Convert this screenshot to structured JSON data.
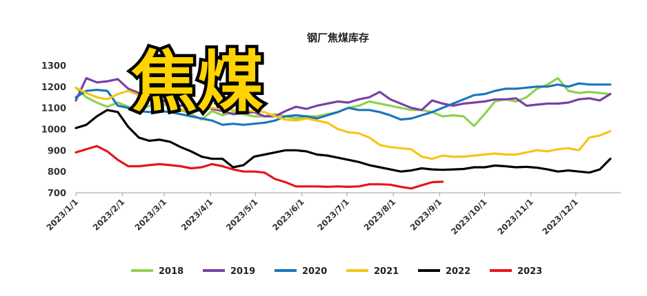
{
  "overlay_text": "焦煤",
  "chart_data": {
    "type": "line",
    "title": "钢厂焦煤库存",
    "xlabel": "",
    "ylabel": "",
    "ylim": [
      700,
      1300
    ],
    "yticks": [
      700,
      800,
      900,
      1000,
      1100,
      1200,
      1300
    ],
    "xlim": [
      0,
      52
    ],
    "xticks": [
      {
        "label": "2023/1/1",
        "x": 0
      },
      {
        "label": "2023/2/1",
        "x": 4.43
      },
      {
        "label": "2023/3/1",
        "x": 8.43
      },
      {
        "label": "2023/4/1",
        "x": 12.86
      },
      {
        "label": "2023/5/1",
        "x": 17.14
      },
      {
        "label": "2023/6/1",
        "x": 21.57
      },
      {
        "label": "2023/7/1",
        "x": 25.86
      },
      {
        "label": "2023/8/1",
        "x": 30.29
      },
      {
        "label": "2023/9/1",
        "x": 34.71
      },
      {
        "label": "2023/10/1",
        "x": 39.0
      },
      {
        "label": "2023/11/1",
        "x": 43.43
      },
      {
        "label": "2023/12/1",
        "x": 47.71
      }
    ],
    "grid": false,
    "legend_position": "bottom",
    "series": [
      {
        "name": "2018",
        "color": "#8fd14f",
        "points": [
          [
            0,
            1195
          ],
          [
            1,
            1150
          ],
          [
            2,
            1125
          ],
          [
            3,
            1105
          ],
          [
            4,
            1125
          ],
          [
            5,
            1105
          ],
          [
            6,
            1085
          ],
          [
            7,
            1110
          ],
          [
            8,
            1115
          ],
          [
            9,
            1115
          ],
          [
            10,
            1090
          ],
          [
            11,
            1070
          ],
          [
            12,
            1045
          ],
          [
            13,
            1085
          ],
          [
            14,
            1065
          ],
          [
            15,
            1080
          ],
          [
            16,
            1070
          ],
          [
            17,
            1060
          ],
          [
            18,
            1060
          ],
          [
            19,
            1070
          ],
          [
            20,
            1060
          ],
          [
            21,
            1050
          ],
          [
            22,
            1060
          ],
          [
            23,
            1060
          ],
          [
            24,
            1070
          ],
          [
            25,
            1080
          ],
          [
            26,
            1100
          ],
          [
            27,
            1110
          ],
          [
            28,
            1130
          ],
          [
            29,
            1120
          ],
          [
            30,
            1110
          ],
          [
            31,
            1100
          ],
          [
            32,
            1090
          ],
          [
            33,
            1090
          ],
          [
            34,
            1080
          ],
          [
            35,
            1060
          ],
          [
            36,
            1065
          ],
          [
            37,
            1060
          ],
          [
            38,
            1015
          ],
          [
            39,
            1070
          ],
          [
            40,
            1130
          ],
          [
            41,
            1140
          ],
          [
            42,
            1130
          ],
          [
            43,
            1150
          ],
          [
            44,
            1190
          ],
          [
            45,
            1210
          ],
          [
            46,
            1240
          ],
          [
            47,
            1180
          ],
          [
            48,
            1170
          ],
          [
            49,
            1175
          ],
          [
            50,
            1170
          ],
          [
            51,
            1165
          ]
        ]
      },
      {
        "name": "2019",
        "color": "#7b3fa6",
        "points": [
          [
            0,
            1135
          ],
          [
            1,
            1240
          ],
          [
            2,
            1220
          ],
          [
            3,
            1225
          ],
          [
            4,
            1235
          ],
          [
            5,
            1190
          ],
          [
            6,
            1170
          ],
          [
            7,
            1160
          ],
          [
            8,
            1140
          ],
          [
            9,
            1120
          ],
          [
            10,
            1110
          ],
          [
            11,
            1115
          ],
          [
            12,
            1105
          ],
          [
            13,
            1095
          ],
          [
            14,
            1085
          ],
          [
            15,
            1070
          ],
          [
            16,
            1075
          ],
          [
            17,
            1080
          ],
          [
            18,
            1060
          ],
          [
            19,
            1060
          ],
          [
            20,
            1085
          ],
          [
            21,
            1105
          ],
          [
            22,
            1095
          ],
          [
            23,
            1110
          ],
          [
            24,
            1120
          ],
          [
            25,
            1130
          ],
          [
            26,
            1125
          ],
          [
            27,
            1140
          ],
          [
            28,
            1150
          ],
          [
            29,
            1175
          ],
          [
            30,
            1140
          ],
          [
            31,
            1120
          ],
          [
            32,
            1100
          ],
          [
            33,
            1090
          ],
          [
            34,
            1135
          ],
          [
            35,
            1120
          ],
          [
            36,
            1110
          ],
          [
            37,
            1120
          ],
          [
            38,
            1125
          ],
          [
            39,
            1130
          ],
          [
            40,
            1140
          ],
          [
            41,
            1140
          ],
          [
            42,
            1145
          ],
          [
            43,
            1110
          ],
          [
            44,
            1115
          ],
          [
            45,
            1120
          ],
          [
            46,
            1120
          ],
          [
            47,
            1125
          ],
          [
            48,
            1140
          ],
          [
            49,
            1145
          ],
          [
            50,
            1135
          ],
          [
            51,
            1165
          ]
        ]
      },
      {
        "name": "2020",
        "color": "#1a75bc",
        "points": [
          [
            0,
            1150
          ],
          [
            1,
            1180
          ],
          [
            2,
            1185
          ],
          [
            3,
            1180
          ],
          [
            4,
            1110
          ],
          [
            5,
            1100
          ],
          [
            6,
            1085
          ],
          [
            7,
            1080
          ],
          [
            8,
            1085
          ],
          [
            9,
            1080
          ],
          [
            10,
            1070
          ],
          [
            11,
            1060
          ],
          [
            12,
            1050
          ],
          [
            13,
            1040
          ],
          [
            14,
            1020
          ],
          [
            15,
            1025
          ],
          [
            16,
            1020
          ],
          [
            17,
            1025
          ],
          [
            18,
            1030
          ],
          [
            19,
            1040
          ],
          [
            20,
            1060
          ],
          [
            21,
            1065
          ],
          [
            22,
            1060
          ],
          [
            23,
            1050
          ],
          [
            24,
            1065
          ],
          [
            25,
            1080
          ],
          [
            26,
            1100
          ],
          [
            27,
            1090
          ],
          [
            28,
            1090
          ],
          [
            29,
            1080
          ],
          [
            30,
            1065
          ],
          [
            31,
            1045
          ],
          [
            32,
            1050
          ],
          [
            33,
            1065
          ],
          [
            34,
            1080
          ],
          [
            35,
            1100
          ],
          [
            36,
            1120
          ],
          [
            37,
            1140
          ],
          [
            38,
            1160
          ],
          [
            39,
            1165
          ],
          [
            40,
            1180
          ],
          [
            41,
            1190
          ],
          [
            42,
            1190
          ],
          [
            43,
            1195
          ],
          [
            44,
            1200
          ],
          [
            45,
            1200
          ],
          [
            46,
            1210
          ],
          [
            47,
            1200
          ],
          [
            48,
            1215
          ],
          [
            49,
            1210
          ],
          [
            50,
            1210
          ],
          [
            51,
            1210
          ]
        ]
      },
      {
        "name": "2021",
        "color": "#f5c518",
        "points": [
          [
            0,
            1195
          ],
          [
            1,
            1170
          ],
          [
            2,
            1150
          ],
          [
            3,
            1140
          ],
          [
            4,
            1165
          ],
          [
            5,
            1180
          ],
          [
            6,
            1160
          ],
          [
            7,
            1150
          ],
          [
            8,
            1130
          ],
          [
            9,
            1110
          ],
          [
            10,
            1095
          ],
          [
            11,
            1085
          ],
          [
            12,
            1090
          ],
          [
            13,
            1100
          ],
          [
            14,
            1095
          ],
          [
            15,
            1090
          ],
          [
            16,
            1090
          ],
          [
            17,
            1085
          ],
          [
            18,
            1080
          ],
          [
            19,
            1060
          ],
          [
            20,
            1045
          ],
          [
            21,
            1040
          ],
          [
            22,
            1050
          ],
          [
            23,
            1040
          ],
          [
            24,
            1030
          ],
          [
            25,
            1000
          ],
          [
            26,
            985
          ],
          [
            27,
            980
          ],
          [
            28,
            960
          ],
          [
            29,
            925
          ],
          [
            30,
            915
          ],
          [
            31,
            910
          ],
          [
            32,
            905
          ],
          [
            33,
            870
          ],
          [
            34,
            860
          ],
          [
            35,
            875
          ],
          [
            36,
            870
          ],
          [
            37,
            870
          ],
          [
            38,
            875
          ],
          [
            39,
            880
          ],
          [
            40,
            885
          ],
          [
            41,
            880
          ],
          [
            42,
            880
          ],
          [
            43,
            890
          ],
          [
            44,
            900
          ],
          [
            45,
            895
          ],
          [
            46,
            905
          ],
          [
            47,
            910
          ],
          [
            48,
            900
          ],
          [
            49,
            960
          ],
          [
            50,
            970
          ],
          [
            51,
            990
          ]
        ]
      },
      {
        "name": "2022",
        "color": "#000000",
        "points": [
          [
            0,
            1005
          ],
          [
            1,
            1020
          ],
          [
            2,
            1060
          ],
          [
            3,
            1090
          ],
          [
            4,
            1080
          ],
          [
            5,
            1010
          ],
          [
            6,
            960
          ],
          [
            7,
            945
          ],
          [
            8,
            950
          ],
          [
            9,
            940
          ],
          [
            10,
            915
          ],
          [
            11,
            895
          ],
          [
            12,
            870
          ],
          [
            13,
            860
          ],
          [
            14,
            860
          ],
          [
            15,
            820
          ],
          [
            16,
            830
          ],
          [
            17,
            870
          ],
          [
            18,
            880
          ],
          [
            19,
            890
          ],
          [
            20,
            900
          ],
          [
            21,
            900
          ],
          [
            22,
            895
          ],
          [
            23,
            880
          ],
          [
            24,
            875
          ],
          [
            25,
            865
          ],
          [
            26,
            855
          ],
          [
            27,
            845
          ],
          [
            28,
            830
          ],
          [
            29,
            820
          ],
          [
            30,
            810
          ],
          [
            31,
            800
          ],
          [
            32,
            805
          ],
          [
            33,
            815
          ],
          [
            34,
            810
          ],
          [
            35,
            808
          ],
          [
            36,
            810
          ],
          [
            37,
            812
          ],
          [
            38,
            820
          ],
          [
            39,
            820
          ],
          [
            40,
            828
          ],
          [
            41,
            825
          ],
          [
            42,
            820
          ],
          [
            43,
            822
          ],
          [
            44,
            818
          ],
          [
            45,
            810
          ],
          [
            46,
            800
          ],
          [
            47,
            805
          ],
          [
            48,
            800
          ],
          [
            49,
            795
          ],
          [
            50,
            810
          ],
          [
            51,
            860
          ]
        ]
      },
      {
        "name": "2023",
        "color": "#e8141b",
        "points": [
          [
            0,
            890
          ],
          [
            1,
            905
          ],
          [
            2,
            920
          ],
          [
            3,
            895
          ],
          [
            4,
            855
          ],
          [
            5,
            825
          ],
          [
            6,
            825
          ],
          [
            7,
            830
          ],
          [
            8,
            835
          ],
          [
            9,
            830
          ],
          [
            10,
            825
          ],
          [
            11,
            815
          ],
          [
            12,
            820
          ],
          [
            13,
            835
          ],
          [
            14,
            825
          ],
          [
            15,
            810
          ],
          [
            16,
            800
          ],
          [
            17,
            800
          ],
          [
            18,
            795
          ],
          [
            19,
            765
          ],
          [
            20,
            750
          ],
          [
            21,
            730
          ],
          [
            22,
            730
          ],
          [
            23,
            730
          ],
          [
            24,
            728
          ],
          [
            25,
            730
          ],
          [
            26,
            728
          ],
          [
            27,
            730
          ],
          [
            28,
            740
          ],
          [
            29,
            740
          ],
          [
            30,
            738
          ],
          [
            31,
            728
          ],
          [
            32,
            720
          ],
          [
            33,
            735
          ],
          [
            34,
            750
          ],
          [
            35,
            752
          ]
        ]
      }
    ]
  }
}
